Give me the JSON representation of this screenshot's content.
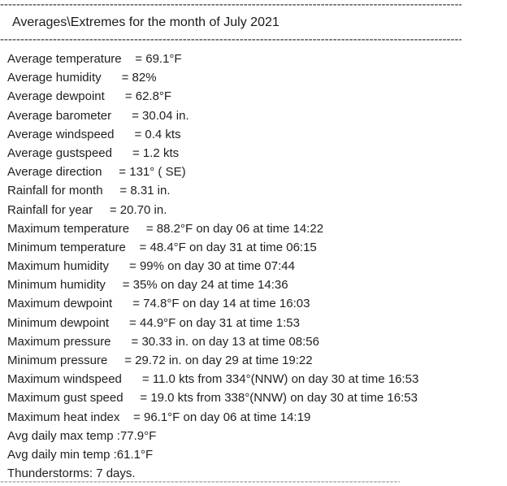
{
  "report": {
    "title": "Averages\\Extremes for the month of July 2021",
    "divider_dashes": "------------------------------------------------------------------------------------------------------------------------",
    "bottom_divider_dashes": "----------------------------------------------------------------------------------------------------",
    "lines": [
      "Average temperature    = 69.1°F",
      "Average humidity      = 82%",
      "Average dewpoint      = 62.8°F",
      "Average barometer      = 30.04 in.",
      "Average windspeed      = 0.4 kts",
      "Average gustspeed      = 1.2 kts",
      "Average direction     = 131° ( SE)",
      "Rainfall for month     = 8.31 in.",
      "Rainfall for year     = 20.70 in.",
      "Maximum temperature     = 88.2°F on day 06 at time 14:22",
      "Minimum temperature    = 48.4°F on day 31 at time 06:15",
      "Maximum humidity      = 99% on day 30 at time 07:44",
      "Minimum humidity     = 35% on day 24 at time 14:36",
      "Maximum dewpoint      = 74.8°F on day 14 at time 16:03",
      "Minimum dewpoint      = 44.9°F on day 31 at time 1:53",
      "Maximum pressure      = 30.33 in. on day 13 at time 08:56",
      "Minimum pressure     = 29.72 in. on day 29 at time 19:22",
      "Maximum windspeed      = 11.0 kts from 334°(NNW) on day 30 at time 16:53",
      "Maximum gust speed     = 19.0 kts from 338°(NNW) on day 30 at time 16:53",
      "Maximum heat index    = 96.1°F on day 06 at time 14:19",
      "Avg daily max temp :77.9°F",
      "Avg daily min temp :61.1°F",
      "Thunderstorms: 7 days."
    ]
  },
  "colors": {
    "background": "#ffffff",
    "text": "#1f1f1f",
    "divider": "#2a2a2a"
  }
}
